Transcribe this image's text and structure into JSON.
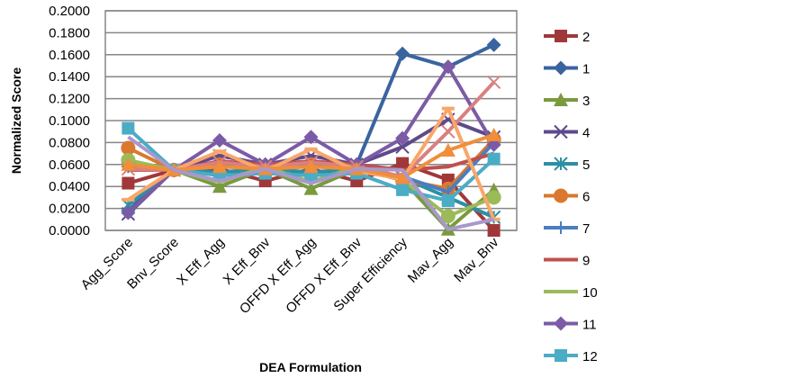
{
  "chart_data": {
    "type": "line",
    "title": "",
    "xlabel": "DEA Formulation",
    "ylabel": "Normalized Score",
    "ylim": [
      0,
      0.2
    ],
    "ytick_step": 0.02,
    "y_tick_labels": [
      "0.0000",
      "0.0200",
      "0.0400",
      "0.0600",
      "0.0800",
      "0.1000",
      "0.1200",
      "0.1400",
      "0.1600",
      "0.1800",
      "0.2000"
    ],
    "grid": "horizontal",
    "legend_position": "right",
    "categories": [
      "Agg_Score",
      "Bnv_Score",
      "X Eff_Agg",
      "X Eff_Bnv",
      "OFFD X Eff_Agg",
      "OFFD X Eff_Bnv",
      "Super Efficiency",
      "Mav_Agg",
      "Mav_Bnv"
    ],
    "series": [
      {
        "name": "2",
        "color": "#A0383A",
        "marker": "square",
        "in_legend": true,
        "values": [
          0.043,
          0.055,
          0.056,
          0.045,
          0.056,
          0.045,
          0.061,
          0.046,
          0.0
        ]
      },
      {
        "name": "1",
        "color": "#3A64A0",
        "marker": "diamond",
        "in_legend": true,
        "values": [
          0.018,
          0.055,
          0.06,
          0.06,
          0.06,
          0.06,
          0.161,
          0.149,
          0.169
        ]
      },
      {
        "name": "3",
        "color": "#7A9A3E",
        "marker": "triangle",
        "in_legend": true,
        "values": [
          0.063,
          0.055,
          0.04,
          0.056,
          0.038,
          0.056,
          0.046,
          0.001,
          0.037
        ]
      },
      {
        "name": "4",
        "color": "#5E4A8A",
        "marker": "x",
        "in_legend": true,
        "values": [
          0.015,
          0.055,
          0.068,
          0.06,
          0.068,
          0.06,
          0.076,
          0.101,
          0.085
        ]
      },
      {
        "name": "5",
        "color": "#2E8FA3",
        "marker": "star",
        "in_legend": true,
        "values": [
          0.023,
          0.055,
          0.053,
          0.056,
          0.053,
          0.056,
          0.048,
          0.03,
          0.012
        ]
      },
      {
        "name": "6",
        "color": "#D9782E",
        "marker": "circle",
        "in_legend": true,
        "values": [
          0.075,
          0.055,
          0.06,
          0.056,
          0.06,
          0.056,
          0.046,
          0.038,
          0.083
        ]
      },
      {
        "name": "7",
        "color": "#4A7EC0",
        "marker": "plus",
        "in_legend": true,
        "values": [
          0.058,
          0.055,
          0.058,
          0.057,
          0.058,
          0.057,
          0.049,
          0.035,
          0.08
        ]
      },
      {
        "name": "9",
        "color": "#C0504D",
        "marker": "none",
        "in_legend": true,
        "values": [
          0.055,
          0.055,
          0.063,
          0.06,
          0.063,
          0.06,
          0.055,
          0.058,
          0.07
        ]
      },
      {
        "name": "10",
        "color": "#9BBB59",
        "marker": "none-circle",
        "in_legend": true,
        "values": [
          0.064,
          0.055,
          0.044,
          0.058,
          0.044,
          0.058,
          0.046,
          0.013,
          0.03
        ]
      },
      {
        "name": "11",
        "color": "#7B5BA6",
        "marker": "diamond",
        "in_legend": true,
        "values": [
          0.016,
          0.055,
          0.082,
          0.06,
          0.085,
          0.06,
          0.084,
          0.149,
          0.078
        ]
      },
      {
        "name": "12",
        "color": "#4BACC6",
        "marker": "square",
        "in_legend": true,
        "values": [
          0.093,
          0.055,
          0.05,
          0.052,
          0.05,
          0.052,
          0.037,
          0.027,
          0.065
        ]
      },
      {
        "name": "",
        "color": "#D98080",
        "marker": "x",
        "in_legend": false,
        "values": [
          0.056,
          0.055,
          0.062,
          0.058,
          0.062,
          0.058,
          0.049,
          0.09,
          0.135
        ]
      },
      {
        "name": "",
        "color": "#FAA66A",
        "marker": "dash",
        "in_legend": false,
        "values": [
          0.028,
          0.055,
          0.072,
          0.054,
          0.074,
          0.054,
          0.047,
          0.111,
          0.01
        ]
      },
      {
        "name": "",
        "color": "#F08E3A",
        "marker": "triangle",
        "in_legend": false,
        "values": [
          0.06,
          0.055,
          0.058,
          0.056,
          0.058,
          0.056,
          0.048,
          0.073,
          0.087
        ]
      },
      {
        "name": "",
        "color": "#A898CC",
        "marker": "none",
        "in_legend": false,
        "values": [
          0.085,
          0.055,
          0.045,
          0.056,
          0.043,
          0.056,
          0.055,
          0.001,
          0.01
        ]
      }
    ]
  }
}
